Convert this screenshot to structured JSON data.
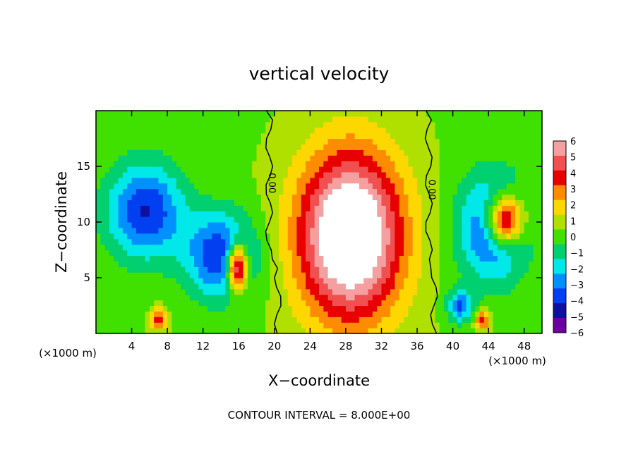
{
  "chart_data": {
    "type": "heatmap",
    "title": "vertical velocity",
    "xlabel": "X−coordinate",
    "ylabel": "Z−coordinate",
    "x_unit_left": "(×1000 m)",
    "x_unit_right": "(×1000 m)",
    "xlim": [
      0,
      50
    ],
    "ylim": [
      0,
      20
    ],
    "x_ticks": [
      4,
      8,
      12,
      16,
      20,
      24,
      28,
      32,
      36,
      40,
      44,
      48
    ],
    "x_tick_labels": [
      "4",
      "8",
      "12",
      "16",
      "20",
      "24",
      "28",
      "32",
      "36",
      "40",
      "44",
      "48"
    ],
    "y_ticks": [
      5,
      10,
      15
    ],
    "y_tick_labels": [
      "5",
      "10",
      "15"
    ],
    "colorbar": {
      "levels": [
        6,
        5,
        4,
        3,
        2,
        1,
        0,
        -1,
        -2,
        -3,
        -4,
        -5,
        -6
      ],
      "labels": [
        "6",
        "5",
        "4",
        "3",
        "2",
        "1",
        "0",
        "−1",
        "−2",
        "−3",
        "−4",
        "−5",
        "−6"
      ],
      "colors": [
        "#f5a0a0",
        "#f05050",
        "#e80000",
        "#ff8c00",
        "#ffd700",
        "#b0e000",
        "#40e000",
        "#00d070",
        "#00e8e8",
        "#0090ff",
        "#0040f0",
        "#1010a0",
        "#6a00a0"
      ]
    },
    "contour_labels": [
      {
        "text": "0.00",
        "x": 19.4,
        "y": 13.5
      },
      {
        "text": "0.00",
        "x": 37.3,
        "y": 12.9
      }
    ],
    "contour_interval": "CONTOUR INTERVAL = 8.000E+00",
    "field": {
      "background_value": 0.4,
      "features": [
        {
          "kind": "updraft",
          "center": [
            28.5,
            8.8
          ],
          "half_width": 6.0,
          "half_height": 7.8,
          "peak": 9
        },
        {
          "kind": "updraft",
          "center": [
            45.8,
            10.2
          ],
          "half_width": 2.2,
          "half_height": 2.4,
          "peak": 8
        },
        {
          "kind": "updraft",
          "center": [
            43.3,
            1.2
          ],
          "half_width": 0.9,
          "half_height": 0.9,
          "peak": 4
        },
        {
          "kind": "updraft",
          "center": [
            7.0,
            1.3
          ],
          "half_width": 0.9,
          "half_height": 1.0,
          "peak": 4
        },
        {
          "kind": "updraft",
          "center": [
            15.8,
            6.0
          ],
          "half_width": 1.2,
          "half_height": 2.2,
          "peak": 8
        },
        {
          "kind": "downdraft",
          "center": [
            5.5,
            11.0
          ],
          "half_width": 4.5,
          "half_height": 4.5,
          "peak": -5
        },
        {
          "kind": "downdraft",
          "center": [
            14.0,
            7.0
          ],
          "half_width": 4.0,
          "half_height": 4.0,
          "peak": -5
        },
        {
          "kind": "downdraft",
          "center": [
            44.5,
            9.5
          ],
          "half_width": 4.0,
          "half_height": 5.0,
          "peak": -5
        },
        {
          "kind": "downdraft",
          "center": [
            40.8,
            2.5
          ],
          "half_width": 1.5,
          "half_height": 1.5,
          "peak": -4
        }
      ]
    }
  }
}
